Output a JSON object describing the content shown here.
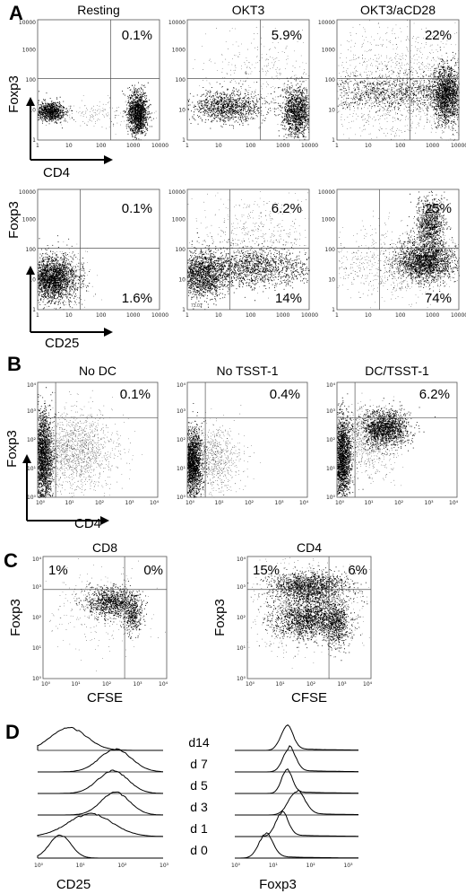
{
  "figure": {
    "panels": {
      "A": {
        "letter": "A",
        "row1": {
          "y_label": "Foxp3",
          "x_label": "CD4",
          "titles": [
            "Resting",
            "OKT3",
            "OKT3/aCD28"
          ],
          "upper_right_pct": [
            "0.1%",
            "5.9%",
            "22%"
          ],
          "ticks": [
            "1",
            "10",
            "100",
            "1000",
            "10000"
          ],
          "plot_notes": [
            "",
            "76.23",
            ""
          ]
        },
        "row2": {
          "y_label": "Foxp3",
          "x_label": "CD25",
          "upper_right_pct": [
            "0.1%",
            "6.2%",
            "25%"
          ],
          "lower_right_pct": [
            "1.6%",
            "14%",
            "74%"
          ],
          "ticks": [
            "1",
            "10",
            "100",
            "1000",
            "10000"
          ],
          "plot_notes": [
            "",
            "73.01",
            ""
          ]
        }
      },
      "B": {
        "letter": "B",
        "y_label": "Foxp3",
        "x_label": "CD4",
        "titles": [
          "No DC",
          "No TSST-1",
          "DC/TSST-1"
        ],
        "upper_right_pct": [
          "0.1%",
          "0.4%",
          "6.2%"
        ],
        "ticks": [
          "10⁰",
          "10¹",
          "10²",
          "10³",
          "10⁴"
        ]
      },
      "C": {
        "letter": "C",
        "y_label": "Foxp3",
        "x_label": "CFSE",
        "titles": [
          "CD8",
          "CD4"
        ],
        "upper_left_pct": [
          "1%",
          "15%"
        ],
        "upper_right_pct": [
          "0%",
          "6%"
        ],
        "ticks": [
          "10⁰",
          "10¹",
          "10²",
          "10³",
          "10⁴"
        ]
      },
      "D": {
        "letter": "D",
        "days": [
          "d14",
          "d 7",
          "d 5",
          "d 3",
          "d 1",
          "d 0"
        ],
        "x_labels": [
          "CD25",
          "Foxp3"
        ],
        "ticks": [
          "10⁰",
          "10¹",
          "10²",
          "10³"
        ]
      }
    }
  }
}
